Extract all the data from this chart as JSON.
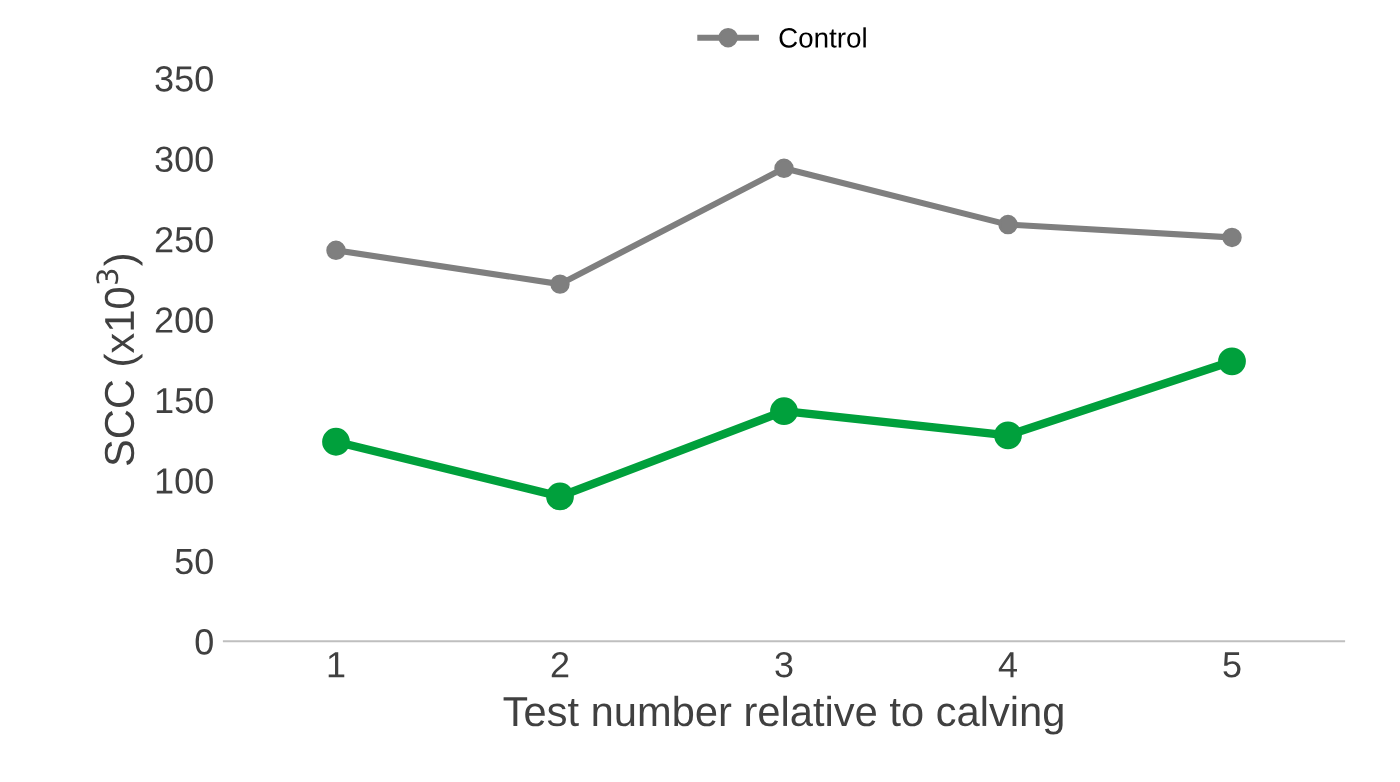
{
  "chart_data": {
    "type": "line",
    "xlabel": "Test number relative to calving",
    "ylabel": "SCC (x10$^{3}$)",
    "categories": [
      "1",
      "2",
      "3",
      "4",
      "5"
    ],
    "series": [
      {
        "name": "Control",
        "color": "#7f7f7f",
        "values": [
          243,
          222,
          294,
          259,
          251
        ]
      },
      {
        "color": "#00a03c",
        "values": [
          124,
          90,
          143,
          128,
          174
        ]
      }
    ],
    "ylim": [
      0,
      350
    ],
    "yticks": [
      0,
      50,
      100,
      150,
      200,
      250,
      300,
      350
    ],
    "grid": false,
    "legend": "top",
    "marker": "circle",
    "line_style": "solid"
  }
}
